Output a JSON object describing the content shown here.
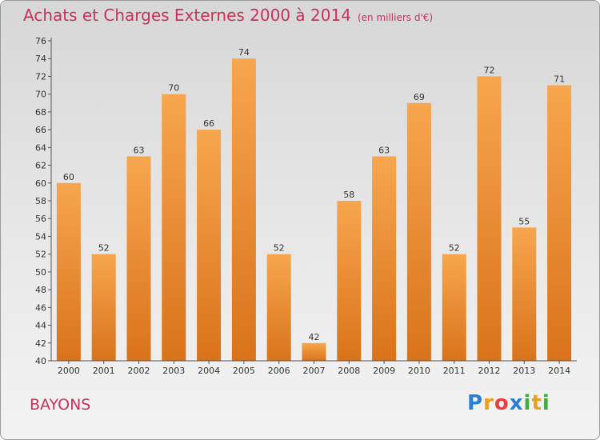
{
  "header": {
    "title": "Achats et Charges Externes 2000 à 2014",
    "subtitle": "(en milliers d'€)"
  },
  "footer": {
    "place": "BAYONS",
    "logo_letters": [
      "P",
      "r",
      "o",
      "x",
      "i",
      "t",
      "i"
    ],
    "logo_colors": [
      "#2a7fd4",
      "#e8a020",
      "#e84040",
      "#2a7fd4",
      "#44aa44",
      "#e8a020",
      "#44aa44"
    ]
  },
  "chart_data": {
    "type": "bar",
    "title": "Achats et Charges Externes 2000 à 2014",
    "subtitle": "(en milliers d'€)",
    "xlabel": "",
    "ylabel": "",
    "categories": [
      "2000",
      "2001",
      "2002",
      "2003",
      "2004",
      "2005",
      "2006",
      "2007",
      "2008",
      "2009",
      "2010",
      "2011",
      "2012",
      "2013",
      "2014"
    ],
    "values": [
      60,
      52,
      63,
      70,
      66,
      74,
      52,
      42,
      58,
      63,
      69,
      52,
      72,
      55,
      71
    ],
    "ylim": [
      40,
      76
    ],
    "ytick_step": 2,
    "grid": false,
    "bar_color_top": "#f7a64e",
    "bar_color_bottom": "#d9731b"
  }
}
